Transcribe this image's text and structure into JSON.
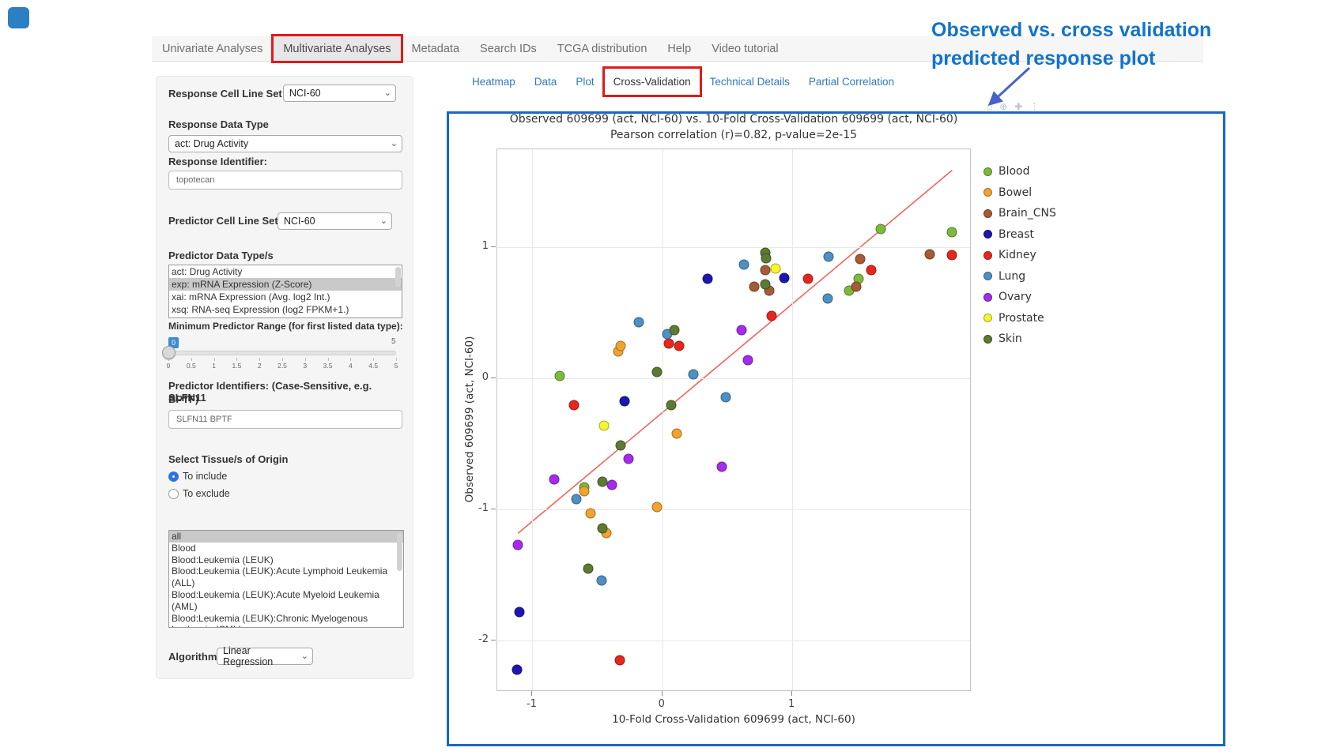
{
  "nav": {
    "tabs": [
      {
        "label": "Univariate Analyses",
        "active": false,
        "boxed": false
      },
      {
        "label": "Multivariate Analyses",
        "active": true,
        "boxed": true
      },
      {
        "label": "Metadata",
        "active": false,
        "boxed": false
      },
      {
        "label": "Search IDs",
        "active": false,
        "boxed": false
      },
      {
        "label": "TCGA distribution",
        "active": false,
        "boxed": false
      },
      {
        "label": "Help",
        "active": false,
        "boxed": false
      },
      {
        "label": "Video tutorial",
        "active": false,
        "boxed": false
      }
    ]
  },
  "subtabs": {
    "tabs": [
      {
        "label": "Heatmap",
        "active": false,
        "boxed": false
      },
      {
        "label": "Data",
        "active": false,
        "boxed": false
      },
      {
        "label": "Plot",
        "active": false,
        "boxed": false
      },
      {
        "label": "Cross-Validation",
        "active": true,
        "boxed": true
      },
      {
        "label": "Technical Details",
        "active": false,
        "boxed": false
      },
      {
        "label": "Partial Correlation",
        "active": false,
        "boxed": false
      }
    ]
  },
  "form": {
    "response_cell_line_set": {
      "label": "Response Cell Line Set",
      "value": "NCI-60"
    },
    "response_data_type": {
      "label": "Response Data Type",
      "value": "act: Drug Activity"
    },
    "response_identifier": {
      "label": "Response Identifier:",
      "value": "topotecan"
    },
    "predictor_cell_line_set": {
      "label": "Predictor Cell Line Set",
      "value": "NCI-60"
    },
    "predictor_data_types": {
      "label": "Predictor Data Type/s",
      "options": [
        "act: Drug Activity",
        "exp: mRNA Expression (Z-Score)",
        "xai: mRNA Expression (Avg. log2 Int.)",
        "xsq: RNA-seq Expression (log2 FPKM+1.)"
      ],
      "selected": "exp: mRNA Expression (Z-Score)"
    },
    "min_predictor_range": {
      "label": "Minimum Predictor Range (for first listed data type):",
      "value": "0",
      "min": "0",
      "max": "5",
      "ticks": [
        "0",
        "0.5",
        "1",
        "1.5",
        "2",
        "2.5",
        "3",
        "3.5",
        "4",
        "4.5",
        "5"
      ]
    },
    "predictor_identifiers": {
      "label_line1": "Predictor Identifiers: (Case-Sensitive, e.g. SLFN11",
      "label_line2": "BPTF)",
      "value": "SLFN11 BPTF"
    },
    "tissue_origin": {
      "label": "Select Tissue/s of Origin",
      "radios": [
        {
          "label": "To include",
          "selected": true
        },
        {
          "label": "To exclude",
          "selected": false
        }
      ],
      "options": [
        "all",
        "Blood",
        "Blood:Leukemia (LEUK)",
        "Blood:Leukemia (LEUK):Acute Lymphoid Leukemia (ALL)",
        "Blood:Leukemia (LEUK):Acute Myeloid Leukemia (AML)",
        "Blood:Leukemia (LEUK):Chronic Myelogenous Leukemia (CML)"
      ],
      "selected": "all"
    },
    "algorithm": {
      "label": "Algorithm",
      "value": "Linear Regression"
    }
  },
  "annotation": {
    "line1": "Observed vs. cross validation",
    "line2": "predicted response plot",
    "color": "#1273cb",
    "arrow_color": "#4664c8"
  },
  "modebar": {
    "icons": [
      {
        "name": "home-icon",
        "glyph": "⌂"
      },
      {
        "name": "zoom-icon",
        "glyph": "⊕"
      },
      {
        "name": "pan-icon",
        "glyph": "✚"
      },
      {
        "name": "more-icon",
        "glyph": "⋮"
      }
    ]
  },
  "colors": {
    "highlight_red": "#e1191c",
    "blue_box_border": "#1868c8",
    "link_blue": "#337ab7",
    "slider_badge_blue": "#3d8bd4"
  },
  "chart_data": {
    "type": "scatter",
    "title": "Observed 609699 (act, NCI-60) vs. 10-Fold Cross-Validation 609699 (act, NCI-60)",
    "subtitle": "Pearson correlation (r)=0.82, p-value=2e-15",
    "xlabel": "10-Fold Cross-Validation 609699 (act, NCI-60)",
    "ylabel": "Observed 609699 (act, NCI-60)",
    "x_ticks": [
      -1,
      0,
      1
    ],
    "y_ticks": [
      1,
      0,
      -1,
      -2
    ],
    "x_range": [
      -1.27,
      2.38
    ],
    "y_range": [
      -2.39,
      1.75
    ],
    "grid": true,
    "legend_position": "right",
    "regression_line": {
      "x1": -1.11,
      "y1": -1.18,
      "x2": 2.23,
      "y2": 1.59,
      "color": "#F4645F"
    },
    "series": [
      {
        "name": "Blood",
        "color": "#7CB93D",
        "points": [
          [
            2.23,
            1.12
          ],
          [
            1.68,
            1.14
          ],
          [
            1.51,
            0.76
          ],
          [
            1.44,
            0.67
          ],
          [
            -0.79,
            0.02
          ],
          [
            -0.6,
            -0.83
          ]
        ]
      },
      {
        "name": "Bowel",
        "color": "#F0A331",
        "points": [
          [
            -0.34,
            0.21
          ],
          [
            -0.32,
            0.25
          ],
          [
            0.11,
            -0.42
          ],
          [
            -0.04,
            -0.98
          ],
          [
            -0.55,
            -1.03
          ],
          [
            -0.43,
            -1.18
          ],
          [
            -0.6,
            -0.86
          ]
        ]
      },
      {
        "name": "Brain_CNS",
        "color": "#A55C36",
        "points": [
          [
            2.06,
            0.95
          ],
          [
            1.52,
            0.91
          ],
          [
            1.49,
            0.7
          ],
          [
            0.79,
            0.83
          ],
          [
            0.71,
            0.7
          ],
          [
            0.82,
            0.67
          ]
        ]
      },
      {
        "name": "Breast",
        "color": "#1D16B0",
        "points": [
          [
            0.35,
            0.76
          ],
          [
            0.94,
            0.77
          ],
          [
            -0.29,
            -0.17
          ],
          [
            -1.1,
            -1.78
          ],
          [
            -1.12,
            -2.22
          ]
        ]
      },
      {
        "name": "Kidney",
        "color": "#E7271D",
        "points": [
          [
            2.23,
            0.94
          ],
          [
            1.61,
            0.83
          ],
          [
            1.12,
            0.76
          ],
          [
            0.84,
            0.48
          ],
          [
            0.05,
            0.27
          ],
          [
            0.13,
            0.25
          ],
          [
            -0.68,
            -0.2
          ],
          [
            -0.33,
            -2.15
          ]
        ]
      },
      {
        "name": "Lung",
        "color": "#4E8FC4",
        "points": [
          [
            1.28,
            0.93
          ],
          [
            0.63,
            0.87
          ],
          [
            1.27,
            0.61
          ],
          [
            -0.18,
            0.43
          ],
          [
            0.04,
            0.34
          ],
          [
            0.24,
            0.03
          ],
          [
            0.49,
            -0.14
          ],
          [
            -0.66,
            -0.92
          ],
          [
            -0.47,
            -1.54
          ]
        ]
      },
      {
        "name": "Ovary",
        "color": "#A52BEE",
        "points": [
          [
            0.61,
            0.37
          ],
          [
            0.66,
            0.14
          ],
          [
            0.46,
            -0.67
          ],
          [
            -0.26,
            -0.61
          ],
          [
            -0.39,
            -0.81
          ],
          [
            -0.83,
            -0.77
          ],
          [
            -1.11,
            -1.27
          ]
        ]
      },
      {
        "name": "Prostate",
        "color": "#F7F52F",
        "points": [
          [
            0.87,
            0.84
          ],
          [
            -0.45,
            -0.36
          ]
        ]
      },
      {
        "name": "Skin",
        "color": "#5C7A33",
        "points": [
          [
            0.79,
            0.96
          ],
          [
            0.8,
            0.92
          ],
          [
            0.79,
            0.72
          ],
          [
            0.09,
            0.37
          ],
          [
            -0.04,
            0.05
          ],
          [
            0.07,
            -0.2
          ],
          [
            -0.32,
            -0.51
          ],
          [
            -0.46,
            -0.79
          ],
          [
            -0.46,
            -1.14
          ],
          [
            -0.57,
            -1.45
          ]
        ]
      }
    ]
  }
}
